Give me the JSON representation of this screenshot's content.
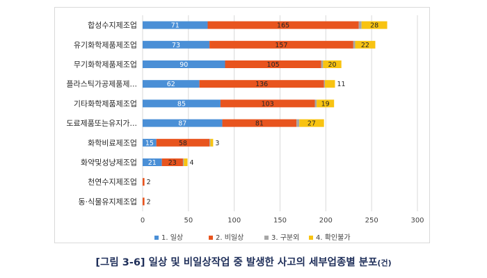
{
  "chart_data": {
    "type": "bar",
    "orientation": "horizontal",
    "stacked": true,
    "categories": [
      "합성수지제조업",
      "유기화학제품제조업",
      "무기화학제품제조업",
      "플라스틱가공제품제...",
      "기타화학제품제조업",
      "도료제품또는유지가...",
      "화학비료제조업",
      "화약및성냥제조업",
      "천연수지제조업",
      "동·식물유지제조업"
    ],
    "series": [
      {
        "name": "1. 일상",
        "color": "#4a8fd6",
        "values": [
          71,
          73,
          90,
          62,
          85,
          87,
          15,
          21,
          0,
          0
        ],
        "labels": [
          "71",
          "73",
          "90",
          "62",
          "85",
          "87",
          "15",
          "21",
          "",
          ""
        ]
      },
      {
        "name": "2. 비일상",
        "color": "#e8541e",
        "values": [
          165,
          157,
          105,
          136,
          103,
          81,
          58,
          23,
          2,
          2
        ],
        "labels": [
          "165",
          "157",
          "105",
          "136",
          "103",
          "81",
          "58",
          "23",
          "2",
          "2"
        ]
      },
      {
        "name": "3. 구분외",
        "color": "#a6a6a6",
        "values": [
          3,
          2,
          2,
          1,
          2,
          3,
          1,
          1,
          0,
          0
        ],
        "labels": [
          "",
          "",
          "",
          "",
          "",
          "",
          "",
          "",
          "",
          ""
        ]
      },
      {
        "name": "4. 확인불가",
        "color": "#f8c311",
        "values": [
          28,
          22,
          20,
          11,
          19,
          27,
          3,
          4,
          0,
          0
        ],
        "labels": [
          "28",
          "22",
          "20",
          "11",
          "19",
          "27",
          "3",
          "4",
          "",
          ""
        ]
      }
    ],
    "xlim": [
      0,
      300
    ],
    "xticks": [
      0,
      50,
      100,
      150,
      200,
      250,
      300
    ],
    "grid": true,
    "legend_position": "bottom"
  },
  "caption": {
    "main": "[그림 3-6] 일상 및 비일상작업 중 발생한 사고의 세부업종별 분포",
    "unit": "(건)"
  }
}
